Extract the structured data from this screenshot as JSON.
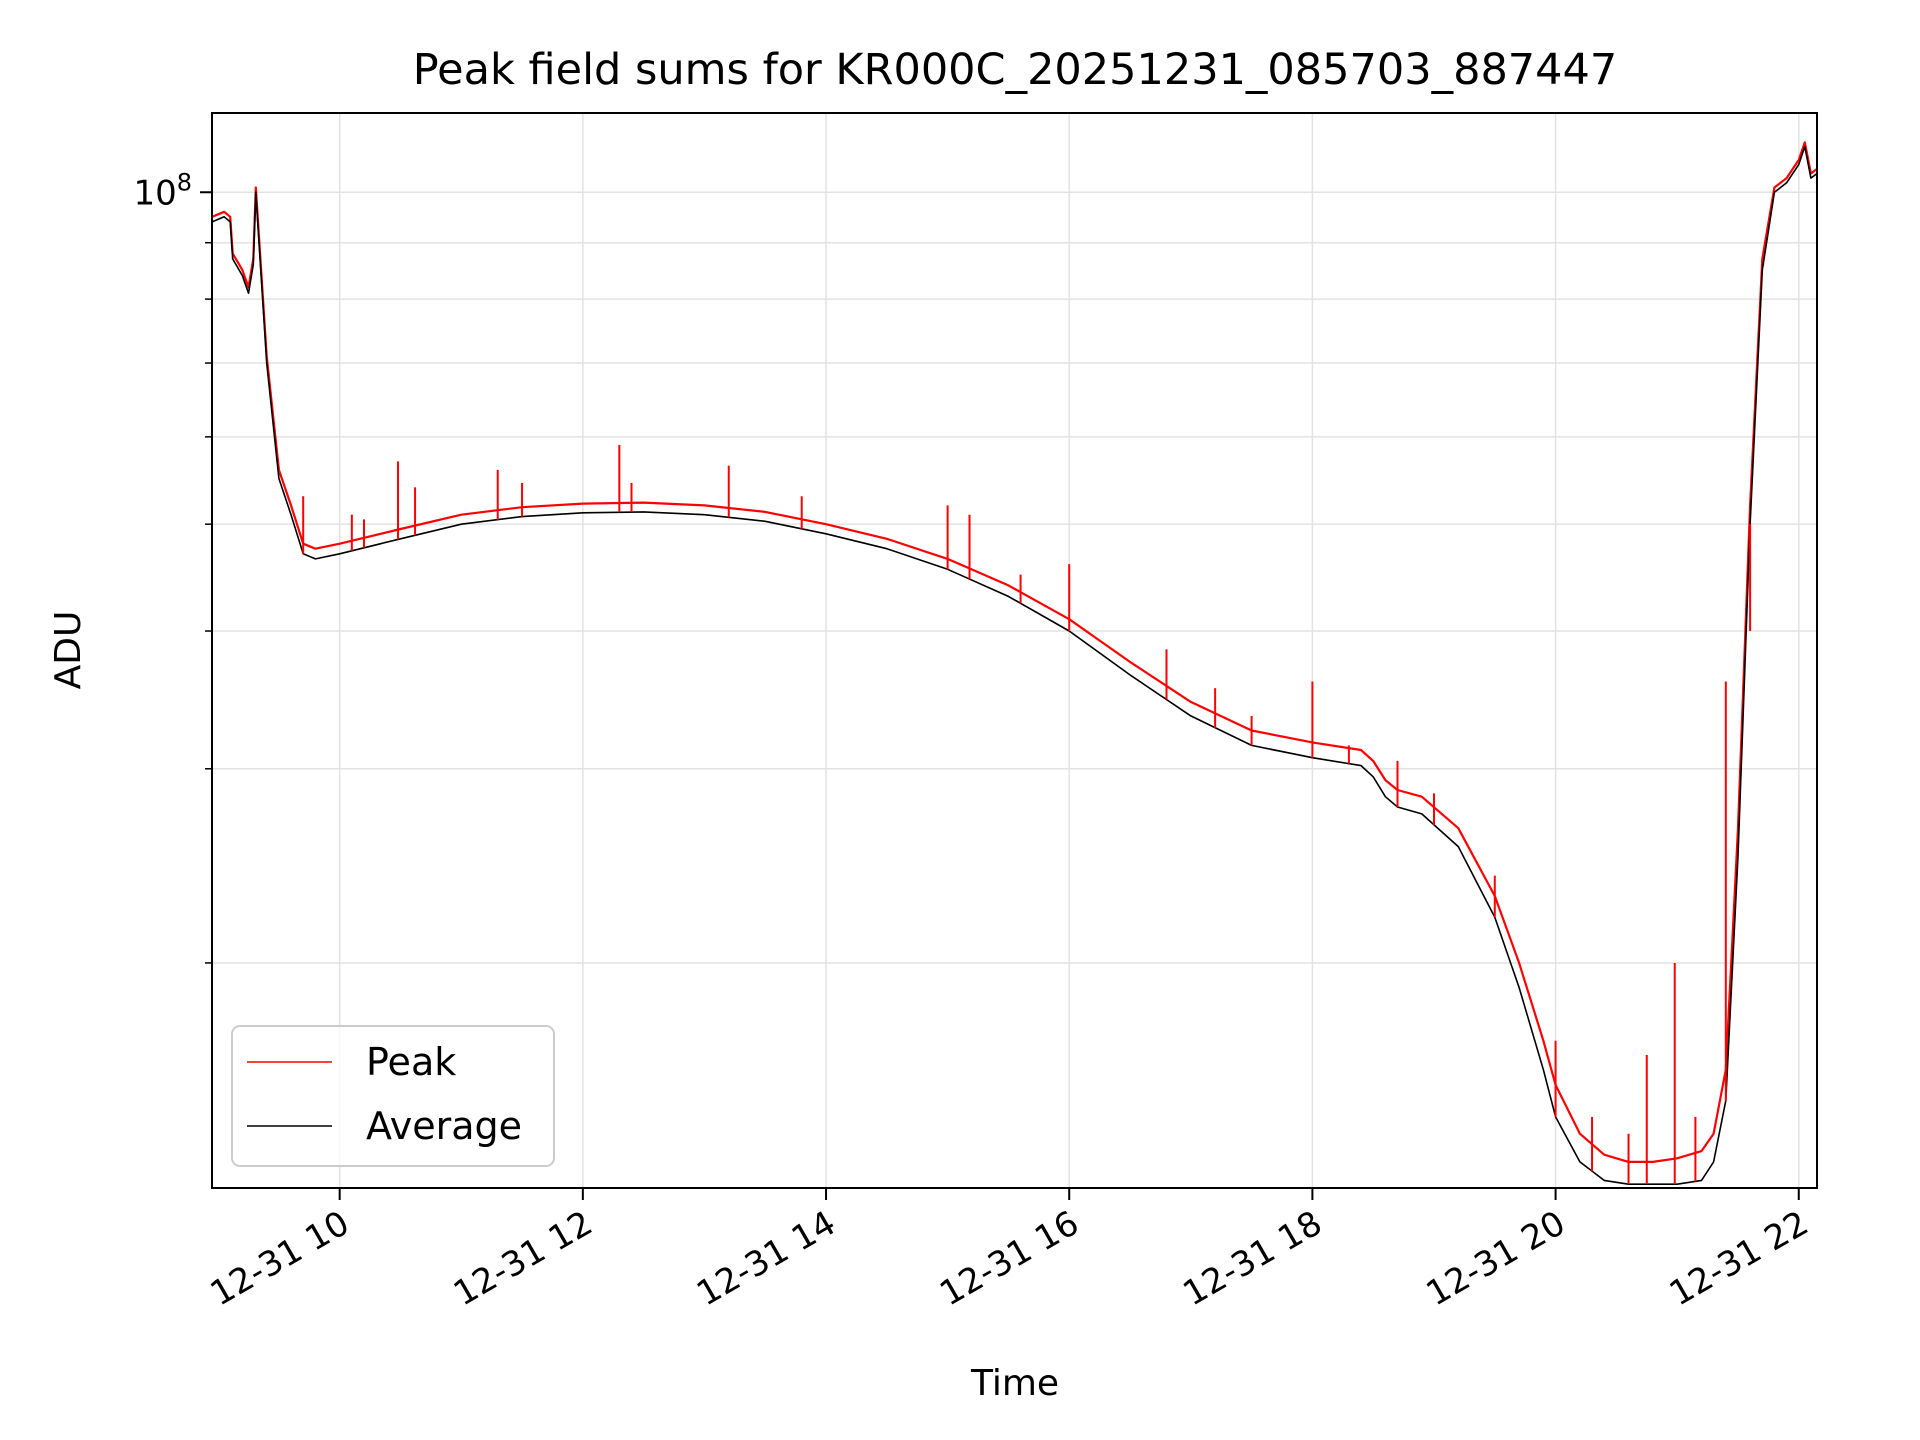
{
  "chart_data": {
    "type": "line",
    "title": "Peak field sums for KR000C_20251231_085703_887447",
    "xlabel": "Time",
    "ylabel": "ADU",
    "yscale": "log",
    "xlim": [
      8.95,
      22.15
    ],
    "ylim": [
      12500000,
      118000000
    ],
    "grid": true,
    "legend_position": "lower-left",
    "x_ticks": [
      {
        "value": 10,
        "label": "12-31 10"
      },
      {
        "value": 12,
        "label": "12-31 12"
      },
      {
        "value": 14,
        "label": "12-31 14"
      },
      {
        "value": 16,
        "label": "12-31 16"
      },
      {
        "value": 18,
        "label": "12-31 18"
      },
      {
        "value": 20,
        "label": "12-31 20"
      },
      {
        "value": 22,
        "label": "12-31 22"
      }
    ],
    "y_major_ticks": [
      {
        "value": 100000000,
        "base": "10",
        "exponent": "8"
      }
    ],
    "y_minor_ticks": [
      20000000,
      30000000,
      40000000,
      50000000,
      60000000,
      70000000,
      80000000,
      90000000
    ],
    "x_units": "hours on 12-31",
    "series": [
      {
        "name": "Average",
        "color": "#000000",
        "x": [
          8.95,
          9.05,
          9.1,
          9.12,
          9.2,
          9.25,
          9.29,
          9.31,
          9.4,
          9.5,
          9.6,
          9.7,
          9.8,
          10.0,
          10.5,
          11.0,
          11.5,
          12.0,
          12.5,
          13.0,
          13.5,
          14.0,
          14.5,
          15.0,
          15.5,
          16.0,
          16.5,
          17.0,
          17.5,
          18.0,
          18.4,
          18.5,
          18.6,
          18.7,
          18.9,
          19.2,
          19.5,
          19.7,
          19.9,
          20.0,
          20.2,
          20.4,
          20.6,
          20.8,
          21.0,
          21.2,
          21.3,
          21.4,
          21.5,
          21.6,
          21.7,
          21.8,
          21.9,
          22.0,
          22.05,
          22.1,
          22.15
        ],
        "values": [
          94000000,
          95000000,
          94000000,
          87000000,
          84000000,
          81000000,
          86000000,
          100000000,
          70000000,
          55000000,
          51000000,
          47000000,
          46500000,
          47000000,
          48500000,
          50000000,
          50800000,
          51200000,
          51300000,
          51000000,
          50300000,
          49000000,
          47500000,
          45500000,
          43000000,
          40000000,
          36500000,
          33500000,
          31500000,
          30700000,
          30200000,
          29500000,
          28300000,
          27700000,
          27300000,
          25500000,
          22000000,
          19000000,
          16000000,
          14500000,
          13200000,
          12700000,
          12600000,
          12600000,
          12600000,
          12700000,
          13200000,
          15000000,
          25000000,
          50000000,
          85000000,
          100000000,
          102000000,
          106000000,
          110000000,
          103000000,
          104000000
        ]
      },
      {
        "name": "Peak",
        "color": "#ff0000",
        "x": [
          8.95,
          9.05,
          9.1,
          9.12,
          9.2,
          9.25,
          9.29,
          9.31,
          9.4,
          9.5,
          9.6,
          9.7,
          9.8,
          10.0,
          10.5,
          11.0,
          11.5,
          12.0,
          12.5,
          13.0,
          13.5,
          14.0,
          14.5,
          15.0,
          15.5,
          16.0,
          16.5,
          17.0,
          17.5,
          18.0,
          18.4,
          18.5,
          18.6,
          18.7,
          18.9,
          19.2,
          19.5,
          19.7,
          19.9,
          20.0,
          20.2,
          20.4,
          20.6,
          20.8,
          21.0,
          21.2,
          21.3,
          21.4,
          21.5,
          21.6,
          21.7,
          21.8,
          21.9,
          22.0,
          22.05,
          22.1,
          22.15
        ],
        "values": [
          95000000,
          96000000,
          95000000,
          88000000,
          85000000,
          82000000,
          87000000,
          101000000,
          71000000,
          56000000,
          52000000,
          48000000,
          47500000,
          48000000,
          49500000,
          51000000,
          51800000,
          52200000,
          52300000,
          52000000,
          51300000,
          50000000,
          48500000,
          46500000,
          44000000,
          41000000,
          37500000,
          34500000,
          32500000,
          31700000,
          31200000,
          30500000,
          29300000,
          28700000,
          28300000,
          26500000,
          23000000,
          20000000,
          17000000,
          15500000,
          14000000,
          13400000,
          13200000,
          13200000,
          13300000,
          13500000,
          14000000,
          16000000,
          26500000,
          52000000,
          87000000,
          101000000,
          103000000,
          107000000,
          111000000,
          104000000,
          105000000
        ]
      }
    ],
    "spikes": [
      {
        "x": 9.7,
        "value": 53000000
      },
      {
        "x": 10.1,
        "value": 51000000
      },
      {
        "x": 10.2,
        "value": 50500000
      },
      {
        "x": 10.48,
        "value": 57000000
      },
      {
        "x": 10.62,
        "value": 54000000
      },
      {
        "x": 11.3,
        "value": 56000000
      },
      {
        "x": 11.5,
        "value": 54500000
      },
      {
        "x": 12.3,
        "value": 59000000
      },
      {
        "x": 12.4,
        "value": 54500000
      },
      {
        "x": 13.2,
        "value": 56500000
      },
      {
        "x": 13.8,
        "value": 53000000
      },
      {
        "x": 15.0,
        "value": 52000000
      },
      {
        "x": 15.18,
        "value": 51000000
      },
      {
        "x": 15.6,
        "value": 45000000
      },
      {
        "x": 16.0,
        "value": 46000000
      },
      {
        "x": 16.8,
        "value": 38500000
      },
      {
        "x": 17.2,
        "value": 35500000
      },
      {
        "x": 17.5,
        "value": 33500000
      },
      {
        "x": 18.0,
        "value": 36000000
      },
      {
        "x": 18.3,
        "value": 31500000
      },
      {
        "x": 18.7,
        "value": 30500000
      },
      {
        "x": 19.0,
        "value": 28500000
      },
      {
        "x": 19.5,
        "value": 24000000
      },
      {
        "x": 20.0,
        "value": 17000000
      },
      {
        "x": 20.3,
        "value": 14500000
      },
      {
        "x": 20.6,
        "value": 14000000
      },
      {
        "x": 20.75,
        "value": 16500000
      },
      {
        "x": 20.98,
        "value": 20000000
      },
      {
        "x": 21.15,
        "value": 14500000
      },
      {
        "x": 21.4,
        "value": 36000000
      },
      {
        "x": 21.6,
        "value": 40000000
      }
    ],
    "legend": [
      {
        "label": "Peak",
        "color": "#ff0000"
      },
      {
        "label": "Average",
        "color": "#000000"
      }
    ]
  }
}
